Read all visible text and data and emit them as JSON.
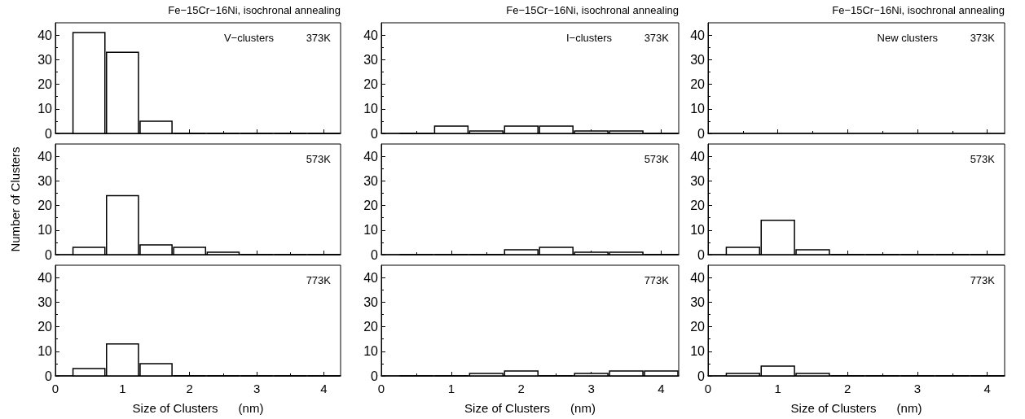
{
  "chart_data": [
    {
      "type": "histogram",
      "title": "Fe−15Cr−16Ni, isochronal annealing",
      "annotations": [
        "V−clusters",
        "373K"
      ],
      "bins": [
        0.25,
        0.75,
        1.25,
        1.75,
        2.25,
        2.75,
        3.25,
        3.75,
        4.25
      ],
      "values": [
        41,
        33,
        5,
        0,
        0,
        0,
        0,
        0
      ],
      "color": "#ffffff",
      "xlim": [
        0,
        4.25
      ],
      "xticks": [
        0,
        1,
        2,
        3,
        4
      ],
      "ylim": [
        0,
        45
      ],
      "yticks": [
        0,
        10,
        20,
        30,
        40
      ],
      "tick_labels": "y"
    },
    {
      "type": "histogram",
      "title": "Fe−15Cr−16Ni, isochronal annealing",
      "annotations": [
        "I−clusters",
        "373K"
      ],
      "bins": [
        0.25,
        0.75,
        1.25,
        1.75,
        2.25,
        2.75,
        3.25,
        3.75,
        4.25
      ],
      "values": [
        0,
        3,
        1,
        3,
        3,
        1,
        1,
        0
      ],
      "color": "#ffffff",
      "xlim": [
        0,
        4.25
      ],
      "xticks": [
        0,
        1,
        2,
        3,
        4
      ],
      "ylim": [
        0,
        45
      ],
      "yticks": [
        0,
        10,
        20,
        30,
        40
      ],
      "tick_labels": "y"
    },
    {
      "type": "histogram",
      "title": "Fe−15Cr−16Ni, isochronal annealing",
      "annotations": [
        "New clusters",
        "373K"
      ],
      "xlim": [
        0,
        4.25
      ],
      "xticks": [
        0,
        1,
        2,
        3,
        4
      ],
      "ylim": [
        0,
        45
      ],
      "yticks": [
        0,
        10,
        20,
        30,
        40
      ],
      "tick_labels": "y"
    },
    {
      "type": "histogram",
      "ylabel": "Number of Clusters",
      "annotations": [
        "573K"
      ],
      "bins": [
        0.25,
        0.75,
        1.25,
        1.75,
        2.25,
        2.75,
        3.25,
        3.75,
        4.25
      ],
      "values": [
        3,
        24,
        4,
        3,
        1,
        0,
        0,
        0
      ],
      "color": "#ffffff",
      "xlim": [
        0,
        4.25
      ],
      "xticks": [
        0,
        1,
        2,
        3,
        4
      ],
      "ylim": [
        0,
        45
      ],
      "yticks": [
        0,
        10,
        20,
        30,
        40
      ],
      "tick_labels": "y"
    },
    {
      "type": "histogram",
      "annotations": [
        "573K"
      ],
      "bins": [
        0.25,
        0.75,
        1.25,
        1.75,
        2.25,
        2.75,
        3.25,
        3.75,
        4.25
      ],
      "values": [
        0,
        0,
        0,
        2,
        3,
        1,
        1,
        0
      ],
      "color": "#ffffff",
      "xlim": [
        0,
        4.25
      ],
      "xticks": [
        0,
        1,
        2,
        3,
        4
      ],
      "ylim": [
        0,
        45
      ],
      "yticks": [
        0,
        10,
        20,
        30,
        40
      ],
      "tick_labels": "y"
    },
    {
      "type": "histogram",
      "annotations": [
        "573K"
      ],
      "bins": [
        0.25,
        0.75,
        1.25,
        1.75,
        2.25,
        2.75,
        3.25,
        3.75,
        4.25
      ],
      "values": [
        3,
        14,
        2,
        0,
        0,
        0,
        0,
        0
      ],
      "color": "#ffffff",
      "xlim": [
        0,
        4.25
      ],
      "xticks": [
        0,
        1,
        2,
        3,
        4
      ],
      "ylim": [
        0,
        45
      ],
      "yticks": [
        0,
        10,
        20,
        30,
        40
      ],
      "tick_labels": "y"
    },
    {
      "type": "histogram",
      "xlabel": "Size of Clusters      (nm)",
      "annotations": [
        "773K"
      ],
      "bins": [
        0.25,
        0.75,
        1.25,
        1.75,
        2.25,
        2.75,
        3.25,
        3.75,
        4.25
      ],
      "values": [
        3,
        13,
        5,
        0,
        0,
        0,
        0,
        0
      ],
      "color": "#ffffff",
      "xlim": [
        0,
        4.25
      ],
      "xticks": [
        0,
        1,
        2,
        3,
        4
      ],
      "ylim": [
        0,
        45
      ],
      "yticks": [
        0,
        10,
        20,
        30,
        40
      ]
    },
    {
      "type": "histogram",
      "xlabel": "Size of Clusters      (nm)",
      "annotations": [
        "773K"
      ],
      "bins": [
        0.25,
        0.75,
        1.25,
        1.75,
        2.25,
        2.75,
        3.25,
        3.75,
        4.25
      ],
      "values": [
        0,
        0,
        1,
        2,
        0,
        1,
        2,
        2
      ],
      "color": "#ffffff",
      "xlim": [
        0,
        4.25
      ],
      "xticks": [
        0,
        1,
        2,
        3,
        4
      ],
      "ylim": [
        0,
        45
      ],
      "yticks": [
        0,
        10,
        20,
        30,
        40
      ]
    },
    {
      "type": "histogram",
      "xlabel": "Size of Clusters      (nm)",
      "annotations": [
        "773K"
      ],
      "bins": [
        0.25,
        0.75,
        1.25,
        1.75,
        2.25,
        2.75,
        3.25,
        3.75,
        4.25
      ],
      "values": [
        1,
        4,
        1,
        0,
        0,
        0,
        0,
        0
      ],
      "color": "#ffffff",
      "xlim": [
        0,
        4.25
      ],
      "xticks": [
        0,
        1,
        2,
        3,
        4
      ],
      "ylim": [
        0,
        45
      ],
      "yticks": [
        0,
        10,
        20,
        30,
        40
      ]
    }
  ]
}
